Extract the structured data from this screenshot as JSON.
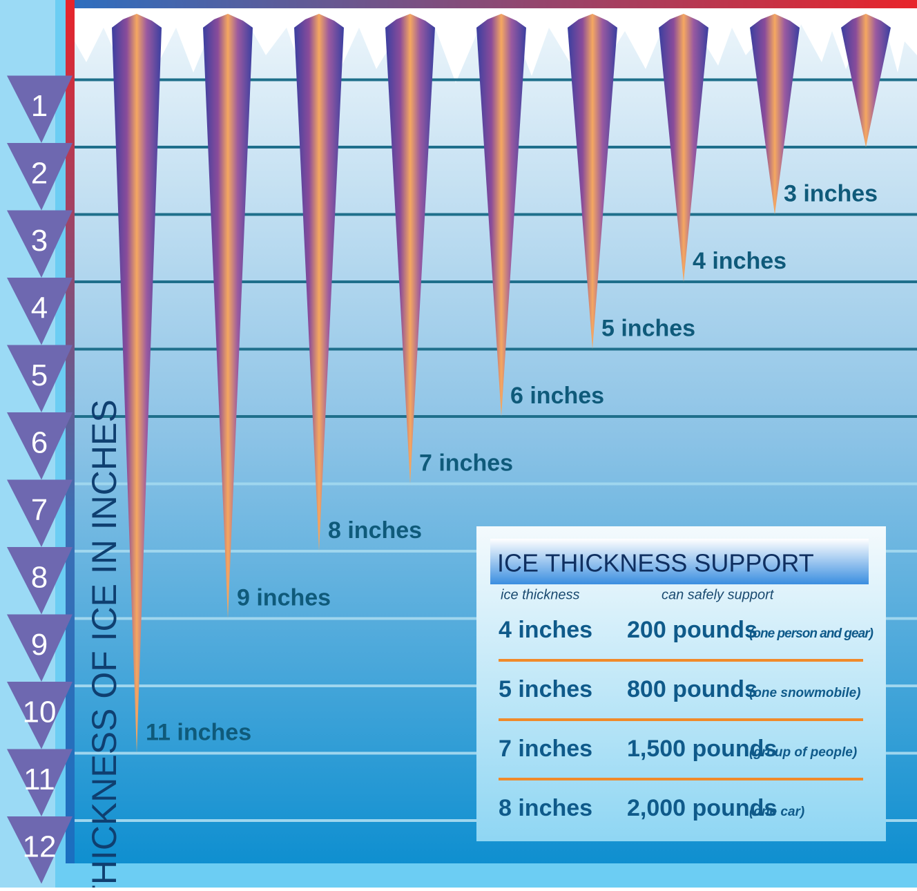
{
  "chart_data": {
    "type": "icicle",
    "y_label": "THICKNESS OF ICE IN INCHES",
    "ylim": [
      0,
      12
    ],
    "yticks": [
      1,
      2,
      3,
      4,
      5,
      6,
      7,
      8,
      9,
      10,
      11,
      12
    ],
    "categories": [
      "11 inches",
      "9 inches",
      "8 inches",
      "7 inches",
      "6 inches",
      "5 inches",
      "4 inches",
      "3 inches",
      null
    ],
    "values": [
      11,
      9,
      8,
      7,
      6,
      5,
      4,
      3,
      2
    ],
    "colors": [
      "#6a3f9c",
      "#f5a860"
    ]
  },
  "table": {
    "title": "ICE THICKNESS SUPPORT",
    "columns": [
      "ice thickness",
      "can safely support"
    ],
    "rows": [
      [
        "4 inches",
        "200 pounds",
        "(one person and gear)"
      ],
      [
        "5 inches",
        "800 pounds",
        "(one snowmobile)"
      ],
      [
        "7 inches",
        "1,500 pounds",
        "(group of people)"
      ],
      [
        "8 inches",
        "2,000 pounds",
        "(one car)"
      ]
    ]
  }
}
